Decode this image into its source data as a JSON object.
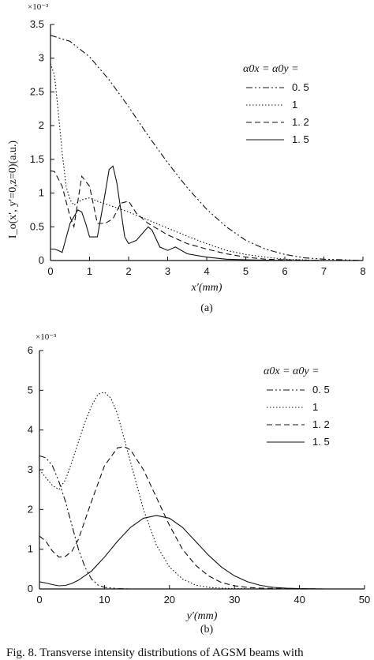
{
  "chart_data": [
    {
      "type": "line",
      "panel_label": "(a)",
      "scale_note": "×10⁻³",
      "ylabel": "I_o(x′, y′=0,z=0)(a.u.)",
      "xlabel": "x′(mm)",
      "xlim": [
        0,
        8
      ],
      "ylim": [
        0,
        3.5
      ],
      "xticks": [
        "0",
        "1",
        "2",
        "3",
        "4",
        "5",
        "6",
        "7",
        "8"
      ],
      "yticks": [
        "0",
        "0.5",
        "1",
        "1.5",
        "2",
        "2.5",
        "3",
        "3.5"
      ],
      "legend_title": "α0x = α0y =",
      "legend_placement": "right",
      "series": [
        {
          "name": "0. 5",
          "dash": "dashdotdot",
          "x": [
            0,
            0.5,
            1,
            1.5,
            2,
            2.5,
            3,
            3.5,
            4,
            4.5,
            5,
            5.5,
            6,
            6.5,
            7,
            7.5,
            8
          ],
          "y": [
            3.34,
            3.25,
            3.02,
            2.68,
            2.28,
            1.85,
            1.45,
            1.08,
            0.76,
            0.5,
            0.3,
            0.17,
            0.09,
            0.04,
            0.02,
            0.01,
            0.0
          ]
        },
        {
          "name": "1",
          "dash": "dotted",
          "x": [
            0,
            0.1,
            0.2,
            0.3,
            0.4,
            0.5,
            0.6,
            0.8,
            1,
            1.2,
            1.5,
            2,
            2.5,
            3,
            3.5,
            4,
            4.5,
            5,
            5.5,
            6,
            7,
            8
          ],
          "y": [
            2.92,
            2.75,
            2.2,
            1.6,
            1.1,
            0.9,
            0.82,
            0.9,
            0.93,
            0.88,
            0.82,
            0.72,
            0.6,
            0.48,
            0.36,
            0.25,
            0.15,
            0.09,
            0.05,
            0.02,
            0.0,
            0.0
          ]
        },
        {
          "name": "1. 2",
          "dash": "dashed",
          "x": [
            0,
            0.1,
            0.3,
            0.5,
            0.6,
            0.8,
            1,
            1.2,
            1.4,
            1.6,
            1.8,
            2,
            2.2,
            2.5,
            3,
            3.5,
            4,
            4.5,
            5,
            5.5,
            6,
            7
          ],
          "y": [
            1.33,
            1.32,
            1.1,
            0.65,
            0.5,
            1.25,
            1.1,
            0.55,
            0.55,
            0.62,
            0.85,
            0.88,
            0.7,
            0.55,
            0.38,
            0.25,
            0.17,
            0.1,
            0.05,
            0.02,
            0.01,
            0.0
          ]
        },
        {
          "name": "1. 5",
          "dash": "solid",
          "x": [
            0,
            0.1,
            0.2,
            0.3,
            0.5,
            0.7,
            0.8,
            0.9,
            1,
            1.2,
            1.4,
            1.5,
            1.6,
            1.7,
            1.9,
            2,
            2.2,
            2.5,
            2.6,
            2.8,
            3,
            3.2,
            3.5,
            4,
            4.5,
            5,
            6
          ],
          "y": [
            0.17,
            0.17,
            0.15,
            0.12,
            0.55,
            0.75,
            0.72,
            0.55,
            0.35,
            0.35,
            1.0,
            1.35,
            1.4,
            1.15,
            0.35,
            0.25,
            0.3,
            0.5,
            0.45,
            0.2,
            0.15,
            0.2,
            0.1,
            0.05,
            0.02,
            0.01,
            0.0
          ]
        }
      ]
    },
    {
      "type": "line",
      "panel_label": "(b)",
      "scale_note": "×10⁻³",
      "ylabel": "I_o(x′=0, y′,z=0)(a.u.)",
      "xlabel": "y′(mm)",
      "xlim": [
        0,
        50
      ],
      "ylim": [
        0,
        6
      ],
      "xticks": [
        "0",
        "10",
        "20",
        "30",
        "40",
        "50"
      ],
      "yticks": [
        "0",
        "1",
        "2",
        "3",
        "4",
        "5",
        "6"
      ],
      "legend_title": "α0x = α0y =",
      "legend_placement": "right",
      "series": [
        {
          "name": "0. 5",
          "dash": "dashdotdot",
          "x": [
            0,
            1,
            2,
            3,
            4,
            5,
            6,
            7,
            8,
            9,
            10,
            12,
            14
          ],
          "y": [
            3.35,
            3.3,
            3.1,
            2.7,
            2.2,
            1.6,
            1.0,
            0.55,
            0.25,
            0.1,
            0.04,
            0.01,
            0.0
          ]
        },
        {
          "name": "1",
          "dash": "dotted",
          "x": [
            0,
            1,
            2,
            3,
            4,
            5,
            6,
            7,
            8,
            9,
            10,
            11,
            12,
            13,
            14,
            16,
            18,
            20,
            22,
            24,
            26,
            28,
            30,
            34,
            40
          ],
          "y": [
            3.0,
            2.8,
            2.6,
            2.5,
            2.75,
            3.2,
            3.7,
            4.2,
            4.6,
            4.9,
            4.95,
            4.8,
            4.4,
            3.8,
            3.2,
            2.0,
            1.1,
            0.55,
            0.25,
            0.1,
            0.04,
            0.02,
            0.01,
            0.0,
            0.0
          ]
        },
        {
          "name": "1. 2",
          "dash": "dashed",
          "x": [
            0,
            1,
            2,
            3,
            4,
            5,
            6,
            8,
            10,
            12,
            13,
            14,
            16,
            18,
            20,
            22,
            24,
            26,
            28,
            30,
            32,
            34,
            38,
            44
          ],
          "y": [
            1.33,
            1.2,
            0.95,
            0.8,
            0.82,
            0.95,
            1.25,
            2.2,
            3.1,
            3.55,
            3.58,
            3.5,
            3.0,
            2.3,
            1.6,
            1.0,
            0.6,
            0.33,
            0.16,
            0.08,
            0.04,
            0.02,
            0.01,
            0.0
          ]
        },
        {
          "name": "1. 5",
          "dash": "solid",
          "x": [
            0,
            1,
            2,
            3,
            4,
            5,
            6,
            8,
            10,
            12,
            14,
            16,
            18,
            20,
            22,
            24,
            26,
            28,
            30,
            32,
            34,
            36,
            38,
            40,
            44
          ],
          "y": [
            0.18,
            0.15,
            0.11,
            0.08,
            0.09,
            0.14,
            0.22,
            0.45,
            0.8,
            1.2,
            1.55,
            1.78,
            1.85,
            1.78,
            1.55,
            1.2,
            0.85,
            0.55,
            0.33,
            0.18,
            0.09,
            0.04,
            0.02,
            0.01,
            0.0
          ]
        }
      ]
    }
  ],
  "caption": "Fig. 8.   Transverse intensity distributions of AGSM beams with"
}
